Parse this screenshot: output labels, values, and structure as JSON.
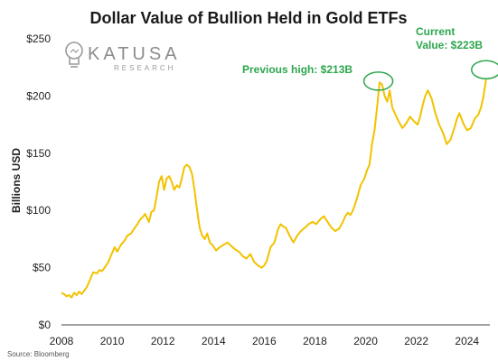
{
  "chart_data": {
    "type": "line",
    "title": "Dollar Value of Bullion Held in Gold ETFs",
    "xlabel": "",
    "ylabel": "Billions USD",
    "xlim": [
      2008,
      2024.9
    ],
    "ylim": [
      0,
      250
    ],
    "x_ticks": [
      2008,
      2010,
      2012,
      2014,
      2016,
      2018,
      2020,
      2022,
      2024
    ],
    "x_tick_labels": [
      "2008",
      "2010",
      "2012",
      "2014",
      "2016",
      "2018",
      "2020",
      "2022",
      "2024"
    ],
    "y_ticks": [
      0,
      50,
      100,
      150,
      200,
      250
    ],
    "y_tick_labels": [
      "$0",
      "$50",
      "$100",
      "$150",
      "$200",
      "$250"
    ],
    "grid": false,
    "series": [
      {
        "name": "",
        "color": "#f2c200",
        "x": [
          2008.0,
          2008.1,
          2008.2,
          2008.3,
          2008.4,
          2008.5,
          2008.6,
          2008.7,
          2008.8,
          2008.9,
          2009.0,
          2009.1,
          2009.25,
          2009.4,
          2009.5,
          2009.6,
          2009.7,
          2009.85,
          2010.0,
          2010.1,
          2010.2,
          2010.35,
          2010.5,
          2010.6,
          2010.75,
          2010.9,
          2011.0,
          2011.1,
          2011.2,
          2011.3,
          2011.45,
          2011.55,
          2011.65,
          2011.75,
          2011.85,
          2011.95,
          2012.05,
          2012.15,
          2012.25,
          2012.35,
          2012.45,
          2012.55,
          2012.65,
          2012.75,
          2012.85,
          2012.95,
          2013.05,
          2013.15,
          2013.25,
          2013.35,
          2013.45,
          2013.55,
          2013.65,
          2013.75,
          2013.85,
          2013.95,
          2014.1,
          2014.25,
          2014.4,
          2014.55,
          2014.7,
          2014.85,
          2015.0,
          2015.15,
          2015.3,
          2015.45,
          2015.6,
          2015.75,
          2015.9,
          2016.0,
          2016.1,
          2016.25,
          2016.4,
          2016.55,
          2016.65,
          2016.75,
          2016.85,
          2017.0,
          2017.15,
          2017.3,
          2017.45,
          2017.6,
          2017.75,
          2017.9,
          2018.05,
          2018.2,
          2018.35,
          2018.5,
          2018.65,
          2018.8,
          2018.95,
          2019.1,
          2019.2,
          2019.3,
          2019.4,
          2019.5,
          2019.65,
          2019.8,
          2019.95,
          2020.05,
          2020.15,
          2020.25,
          2020.35,
          2020.45,
          2020.55,
          2020.65,
          2020.75,
          2020.85,
          2020.95,
          2021.05,
          2021.15,
          2021.3,
          2021.45,
          2021.6,
          2021.75,
          2021.9,
          2022.05,
          2022.15,
          2022.25,
          2022.35,
          2022.45,
          2022.6,
          2022.75,
          2022.9,
          2023.05,
          2023.2,
          2023.35,
          2023.5,
          2023.6,
          2023.7,
          2023.85,
          2024.0,
          2024.15,
          2024.3,
          2024.45,
          2024.55,
          2024.65,
          2024.75
        ],
        "values": [
          28,
          27,
          25,
          26,
          24,
          28,
          26,
          29,
          27,
          30,
          33,
          38,
          46,
          45,
          48,
          47,
          50,
          55,
          63,
          68,
          64,
          70,
          74,
          78,
          80,
          85,
          88,
          92,
          94,
          97,
          90,
          99,
          100,
          112,
          125,
          130,
          118,
          128,
          130,
          125,
          118,
          122,
          120,
          128,
          138,
          140,
          138,
          132,
          118,
          100,
          85,
          78,
          75,
          80,
          72,
          70,
          65,
          68,
          70,
          72,
          69,
          66,
          64,
          60,
          58,
          62,
          55,
          52,
          50,
          52,
          56,
          68,
          72,
          84,
          88,
          86,
          85,
          78,
          72,
          78,
          82,
          85,
          88,
          90,
          88,
          92,
          95,
          90,
          85,
          82,
          84,
          90,
          95,
          98,
          96,
          100,
          110,
          122,
          128,
          135,
          140,
          158,
          170,
          190,
          212,
          210,
          200,
          195,
          205,
          190,
          185,
          178,
          172,
          176,
          182,
          178,
          175,
          182,
          192,
          200,
          205,
          198,
          185,
          175,
          168,
          158,
          162,
          172,
          180,
          185,
          176,
          170,
          172,
          180,
          184,
          190,
          200,
          215
        ]
      }
    ],
    "annotations": [
      {
        "text": "Previous high: $213B",
        "x": 2020.5,
        "y": 213,
        "color": "#2ca64d",
        "circle_color": "#2ca64d"
      },
      {
        "text": "Current",
        "color": "#2ca64d"
      },
      {
        "text": "Value: $223B",
        "x": 2024.75,
        "y": 223,
        "color": "#2ca64d",
        "circle_color": "#2ca64d"
      }
    ],
    "source": "Source: Bloomberg",
    "logo": {
      "name": "KATUSA",
      "sub": "RESEARCH",
      "icon": "lightbulb-logo-icon"
    }
  }
}
